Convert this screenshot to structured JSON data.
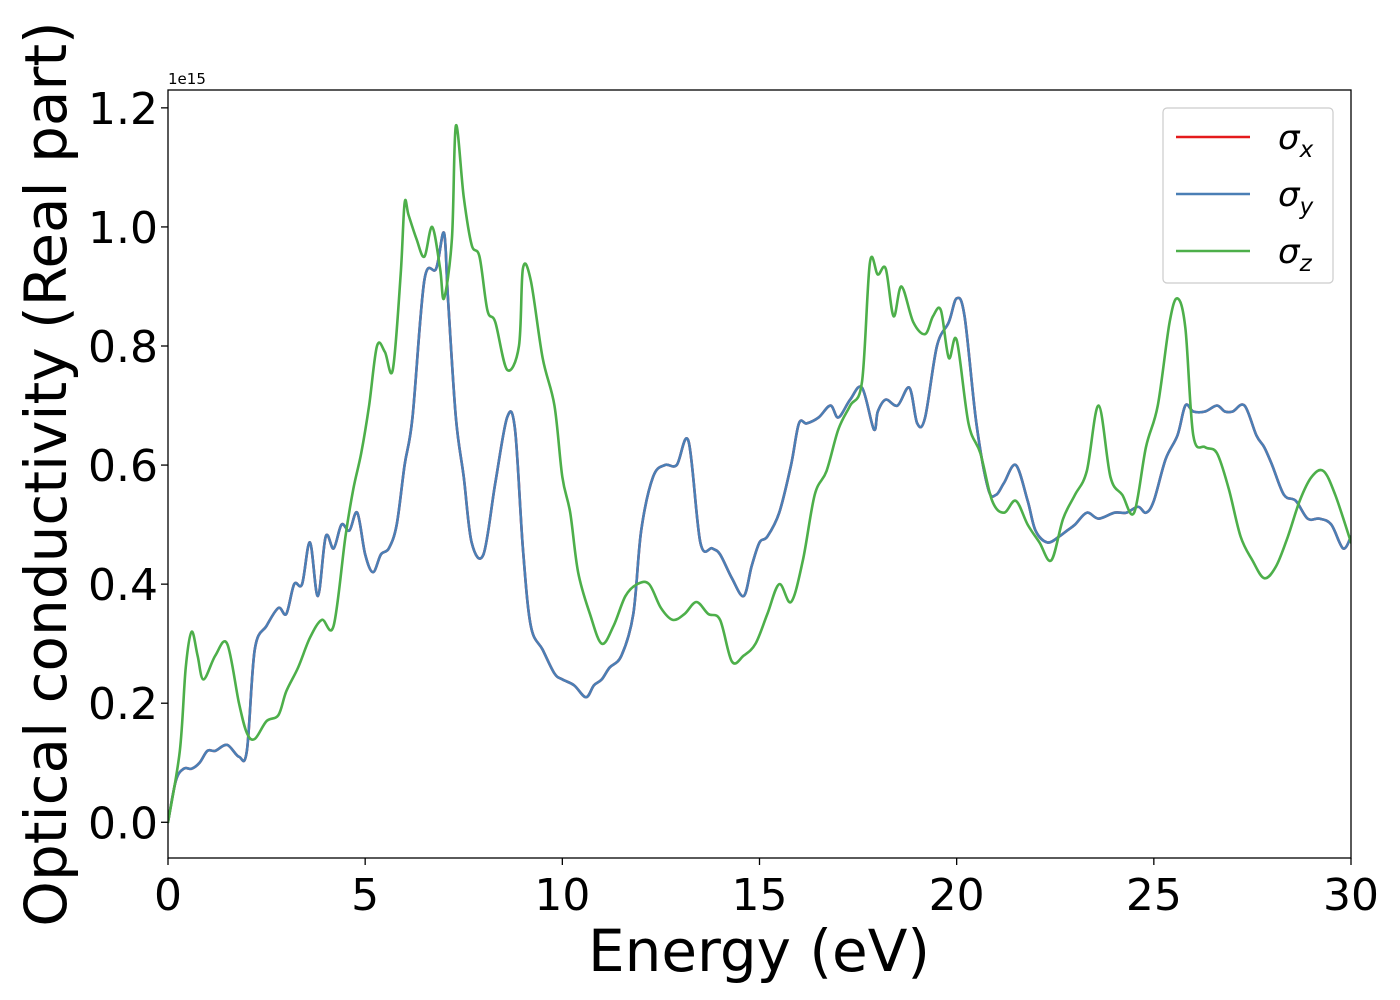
{
  "chart_data": {
    "type": "line",
    "xlabel": "Energy (eV)",
    "ylabel": "Optical conductivity (Real part)",
    "offset_label": "1e15",
    "xlim": [
      0,
      30
    ],
    "ylim": [
      -0.06,
      1.23
    ],
    "xticks": [
      0,
      5,
      10,
      15,
      20,
      25,
      30
    ],
    "yticks": [
      0.0,
      0.2,
      0.4,
      0.6,
      0.8,
      1.0,
      1.2
    ],
    "xtick_labels": [
      "0",
      "5",
      "10",
      "15",
      "20",
      "25",
      "30"
    ],
    "ytick_labels": [
      "0.0",
      "0.2",
      "0.4",
      "0.6",
      "0.8",
      "1.0",
      "1.2"
    ],
    "legend_position": "top-right",
    "series": [
      {
        "name": "σx",
        "name_base": "σ",
        "name_sub": "x",
        "color": "#e41a1c",
        "x": [
          0,
          0.2,
          0.4,
          0.6,
          0.8,
          1.0,
          1.2,
          1.5,
          1.8,
          2.0,
          2.2,
          2.5,
          2.8,
          3.0,
          3.2,
          3.4,
          3.6,
          3.8,
          4.0,
          4.2,
          4.4,
          4.6,
          4.8,
          5.0,
          5.2,
          5.4,
          5.6,
          5.8,
          6.0,
          6.2,
          6.5,
          6.8,
          7.0,
          7.1,
          7.3,
          7.5,
          7.7,
          8.0,
          8.3,
          8.6,
          8.8,
          9.0,
          9.2,
          9.5,
          9.8,
          10.0,
          10.3,
          10.6,
          10.8,
          11.0,
          11.2,
          11.5,
          11.8,
          12.0,
          12.3,
          12.6,
          12.9,
          13.2,
          13.5,
          13.8,
          14.0,
          14.3,
          14.6,
          14.8,
          15.0,
          15.2,
          15.5,
          15.8,
          16.0,
          16.2,
          16.5,
          16.8,
          17.0,
          17.3,
          17.6,
          17.9,
          18.0,
          18.2,
          18.5,
          18.8,
          19.0,
          19.2,
          19.5,
          19.8,
          20.0,
          20.2,
          20.5,
          20.8,
          21.0,
          21.2,
          21.5,
          21.8,
          22.0,
          22.3,
          22.6,
          22.8,
          23.0,
          23.3,
          23.6,
          24.0,
          24.3,
          24.6,
          24.8,
          25.0,
          25.3,
          25.6,
          25.8,
          26.0,
          26.3,
          26.6,
          26.8,
          27.0,
          27.3,
          27.6,
          27.8,
          28.0,
          28.3,
          28.6,
          28.9,
          29.2,
          29.5,
          29.8,
          30.0
        ],
        "y": [
          0.0,
          0.07,
          0.09,
          0.09,
          0.1,
          0.12,
          0.12,
          0.13,
          0.11,
          0.12,
          0.29,
          0.33,
          0.36,
          0.35,
          0.4,
          0.4,
          0.47,
          0.38,
          0.48,
          0.46,
          0.5,
          0.49,
          0.52,
          0.45,
          0.42,
          0.45,
          0.46,
          0.5,
          0.6,
          0.68,
          0.91,
          0.93,
          0.99,
          0.88,
          0.68,
          0.58,
          0.47,
          0.45,
          0.57,
          0.68,
          0.66,
          0.46,
          0.33,
          0.29,
          0.25,
          0.24,
          0.23,
          0.21,
          0.23,
          0.24,
          0.26,
          0.28,
          0.35,
          0.49,
          0.58,
          0.6,
          0.6,
          0.64,
          0.47,
          0.46,
          0.45,
          0.41,
          0.38,
          0.43,
          0.47,
          0.48,
          0.52,
          0.6,
          0.67,
          0.67,
          0.68,
          0.7,
          0.68,
          0.71,
          0.73,
          0.66,
          0.69,
          0.71,
          0.7,
          0.73,
          0.67,
          0.68,
          0.8,
          0.84,
          0.88,
          0.85,
          0.67,
          0.56,
          0.55,
          0.57,
          0.6,
          0.54,
          0.49,
          0.47,
          0.48,
          0.49,
          0.5,
          0.52,
          0.51,
          0.52,
          0.52,
          0.53,
          0.52,
          0.54,
          0.61,
          0.65,
          0.7,
          0.69,
          0.69,
          0.7,
          0.69,
          0.69,
          0.7,
          0.65,
          0.63,
          0.6,
          0.55,
          0.54,
          0.51,
          0.51,
          0.5,
          0.46,
          0.48
        ]
      },
      {
        "name": "σy",
        "name_base": "σ",
        "name_sub": "y",
        "color": "#4a7fb5",
        "x": [
          0,
          0.2,
          0.4,
          0.6,
          0.8,
          1.0,
          1.2,
          1.5,
          1.8,
          2.0,
          2.2,
          2.5,
          2.8,
          3.0,
          3.2,
          3.4,
          3.6,
          3.8,
          4.0,
          4.2,
          4.4,
          4.6,
          4.8,
          5.0,
          5.2,
          5.4,
          5.6,
          5.8,
          6.0,
          6.2,
          6.5,
          6.8,
          7.0,
          7.1,
          7.3,
          7.5,
          7.7,
          8.0,
          8.3,
          8.6,
          8.8,
          9.0,
          9.2,
          9.5,
          9.8,
          10.0,
          10.3,
          10.6,
          10.8,
          11.0,
          11.2,
          11.5,
          11.8,
          12.0,
          12.3,
          12.6,
          12.9,
          13.2,
          13.5,
          13.8,
          14.0,
          14.3,
          14.6,
          14.8,
          15.0,
          15.2,
          15.5,
          15.8,
          16.0,
          16.2,
          16.5,
          16.8,
          17.0,
          17.3,
          17.6,
          17.9,
          18.0,
          18.2,
          18.5,
          18.8,
          19.0,
          19.2,
          19.5,
          19.8,
          20.0,
          20.2,
          20.5,
          20.8,
          21.0,
          21.2,
          21.5,
          21.8,
          22.0,
          22.3,
          22.6,
          22.8,
          23.0,
          23.3,
          23.6,
          24.0,
          24.3,
          24.6,
          24.8,
          25.0,
          25.3,
          25.6,
          25.8,
          26.0,
          26.3,
          26.6,
          26.8,
          27.0,
          27.3,
          27.6,
          27.8,
          28.0,
          28.3,
          28.6,
          28.9,
          29.2,
          29.5,
          29.8,
          30.0
        ],
        "y": [
          0.0,
          0.07,
          0.09,
          0.09,
          0.1,
          0.12,
          0.12,
          0.13,
          0.11,
          0.12,
          0.29,
          0.33,
          0.36,
          0.35,
          0.4,
          0.4,
          0.47,
          0.38,
          0.48,
          0.46,
          0.5,
          0.49,
          0.52,
          0.45,
          0.42,
          0.45,
          0.46,
          0.5,
          0.6,
          0.68,
          0.91,
          0.93,
          0.99,
          0.88,
          0.68,
          0.58,
          0.47,
          0.45,
          0.57,
          0.68,
          0.66,
          0.46,
          0.33,
          0.29,
          0.25,
          0.24,
          0.23,
          0.21,
          0.23,
          0.24,
          0.26,
          0.28,
          0.35,
          0.49,
          0.58,
          0.6,
          0.6,
          0.64,
          0.47,
          0.46,
          0.45,
          0.41,
          0.38,
          0.43,
          0.47,
          0.48,
          0.52,
          0.6,
          0.67,
          0.67,
          0.68,
          0.7,
          0.68,
          0.71,
          0.73,
          0.66,
          0.69,
          0.71,
          0.7,
          0.73,
          0.67,
          0.68,
          0.8,
          0.84,
          0.88,
          0.85,
          0.67,
          0.56,
          0.55,
          0.57,
          0.6,
          0.54,
          0.49,
          0.47,
          0.48,
          0.49,
          0.5,
          0.52,
          0.51,
          0.52,
          0.52,
          0.53,
          0.52,
          0.54,
          0.61,
          0.65,
          0.7,
          0.69,
          0.69,
          0.7,
          0.69,
          0.69,
          0.7,
          0.65,
          0.63,
          0.6,
          0.55,
          0.54,
          0.51,
          0.51,
          0.5,
          0.46,
          0.48
        ]
      },
      {
        "name": "σz",
        "name_base": "σ",
        "name_sub": "z",
        "color": "#4daf4a",
        "x": [
          0,
          0.3,
          0.45,
          0.6,
          0.75,
          0.9,
          1.2,
          1.5,
          1.8,
          2.0,
          2.2,
          2.5,
          2.8,
          3.0,
          3.3,
          3.6,
          3.9,
          4.2,
          4.5,
          4.7,
          4.9,
          5.1,
          5.3,
          5.5,
          5.7,
          5.9,
          6.0,
          6.1,
          6.3,
          6.5,
          6.7,
          6.9,
          7.0,
          7.2,
          7.3,
          7.5,
          7.7,
          7.9,
          8.1,
          8.3,
          8.6,
          8.9,
          9.0,
          9.2,
          9.5,
          9.8,
          10.0,
          10.2,
          10.4,
          10.7,
          11.0,
          11.3,
          11.6,
          11.9,
          12.2,
          12.5,
          12.8,
          13.1,
          13.4,
          13.7,
          14.0,
          14.3,
          14.6,
          14.9,
          15.2,
          15.5,
          15.8,
          16.1,
          16.4,
          16.7,
          17.0,
          17.3,
          17.6,
          17.8,
          18.0,
          18.2,
          18.4,
          18.6,
          18.9,
          19.2,
          19.4,
          19.6,
          19.8,
          20.0,
          20.3,
          20.6,
          20.9,
          21.2,
          21.5,
          21.8,
          22.1,
          22.4,
          22.7,
          23.0,
          23.3,
          23.6,
          23.9,
          24.2,
          24.5,
          24.8,
          25.1,
          25.4,
          25.6,
          25.8,
          26.0,
          26.3,
          26.6,
          26.9,
          27.2,
          27.5,
          27.8,
          28.1,
          28.4,
          28.7,
          29.0,
          29.3,
          29.6,
          30.0
        ],
        "y": [
          0.0,
          0.12,
          0.26,
          0.32,
          0.28,
          0.24,
          0.28,
          0.3,
          0.2,
          0.15,
          0.14,
          0.17,
          0.18,
          0.22,
          0.26,
          0.31,
          0.34,
          0.33,
          0.48,
          0.56,
          0.62,
          0.7,
          0.8,
          0.79,
          0.76,
          0.92,
          1.04,
          1.02,
          0.98,
          0.95,
          1.0,
          0.93,
          0.88,
          0.98,
          1.17,
          1.05,
          0.97,
          0.95,
          0.86,
          0.84,
          0.76,
          0.8,
          0.93,
          0.91,
          0.78,
          0.7,
          0.58,
          0.52,
          0.42,
          0.35,
          0.3,
          0.33,
          0.38,
          0.4,
          0.4,
          0.36,
          0.34,
          0.35,
          0.37,
          0.35,
          0.34,
          0.27,
          0.28,
          0.3,
          0.35,
          0.4,
          0.37,
          0.44,
          0.55,
          0.59,
          0.66,
          0.7,
          0.74,
          0.94,
          0.92,
          0.93,
          0.85,
          0.9,
          0.84,
          0.82,
          0.85,
          0.86,
          0.78,
          0.81,
          0.67,
          0.62,
          0.54,
          0.52,
          0.54,
          0.5,
          0.47,
          0.44,
          0.51,
          0.55,
          0.59,
          0.7,
          0.58,
          0.55,
          0.52,
          0.63,
          0.7,
          0.84,
          0.88,
          0.83,
          0.65,
          0.63,
          0.62,
          0.56,
          0.48,
          0.44,
          0.41,
          0.43,
          0.48,
          0.54,
          0.58,
          0.59,
          0.55,
          0.47
        ]
      }
    ]
  }
}
